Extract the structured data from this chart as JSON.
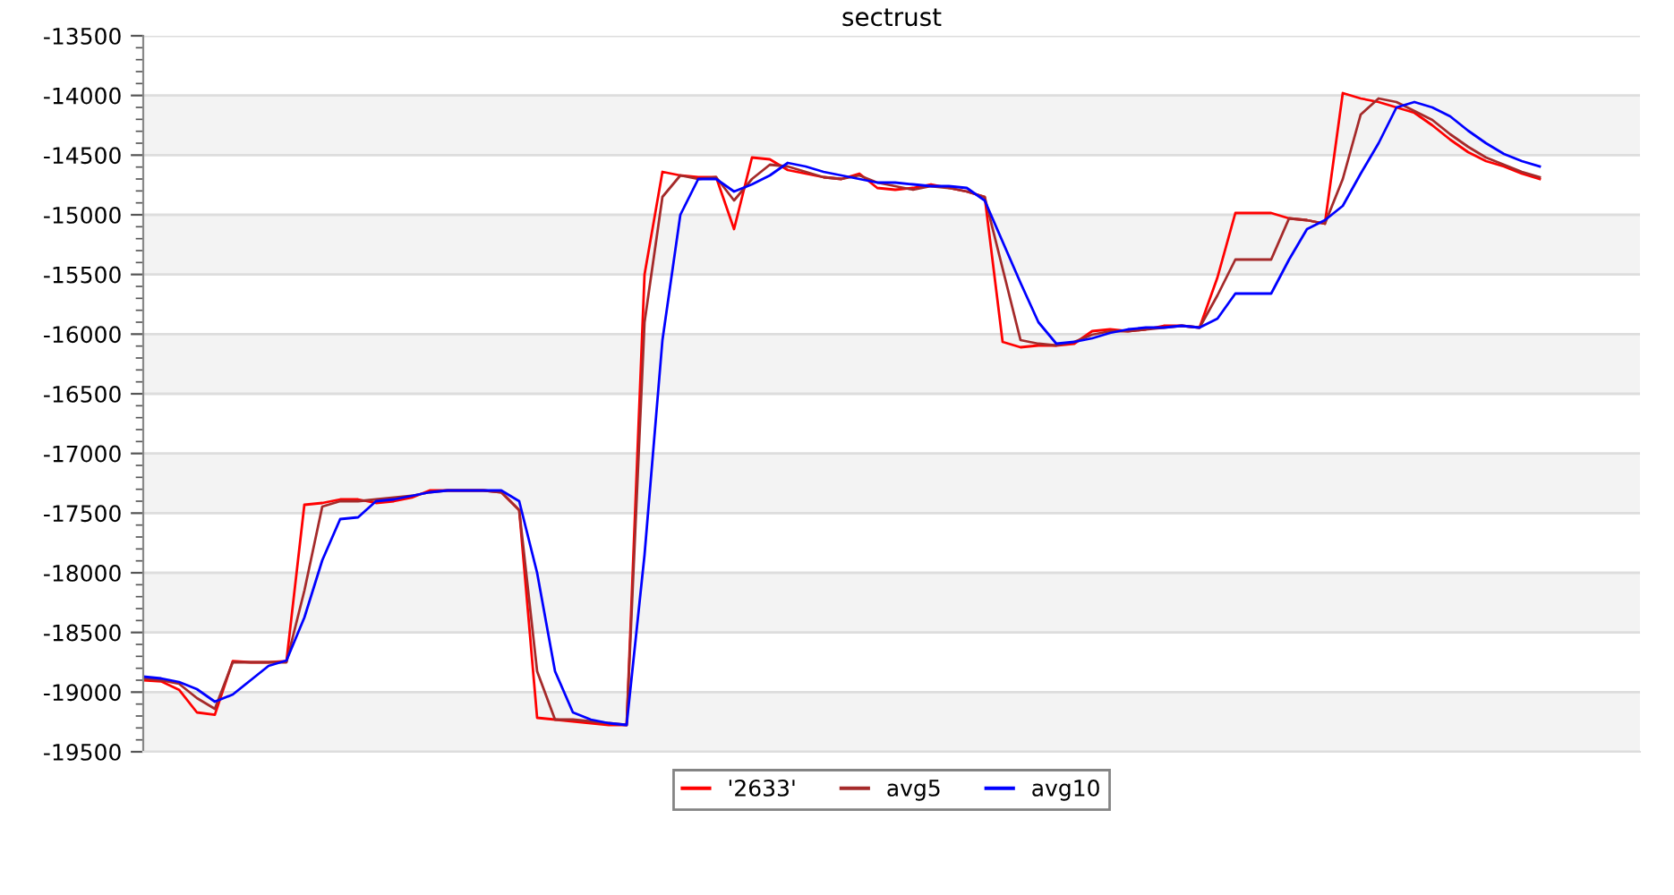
{
  "chart_data": {
    "type": "line",
    "title": "sectrust",
    "categories": [
      null,
      null,
      null,
      null,
      null,
      null,
      null,
      null,
      null,
      null,
      null,
      null,
      null,
      null,
      null,
      null,
      null,
      null,
      null,
      null,
      null,
      null,
      null,
      null,
      null,
      null,
      null,
      null,
      null,
      null,
      null,
      null,
      null,
      null,
      null,
      null,
      null,
      null,
      null,
      null,
      null,
      null,
      null,
      null,
      null,
      null,
      null,
      null,
      null,
      null,
      null,
      null,
      null,
      null,
      null,
      null,
      null,
      null,
      null,
      null,
      null,
      null,
      null,
      null,
      null,
      null,
      null,
      null,
      null,
      null,
      null,
      null,
      null,
      null,
      null,
      null,
      null,
      null,
      null
    ],
    "series": [
      {
        "name": "'2633'",
        "color": "#ff0000",
        "values": [
          -18900,
          -18910,
          -18980,
          -19170,
          -19190,
          -18740,
          -18750,
          -18750,
          -18740,
          -17430,
          -17415,
          -17385,
          -17385,
          -17415,
          -17400,
          -17370,
          -17310,
          -17310,
          -17310,
          -17310,
          -17325,
          -17475,
          -19215,
          -19230,
          -19245,
          -19260,
          -19275,
          -19275,
          -15500,
          -14640,
          -14670,
          -14685,
          -14685,
          -15120,
          -14520,
          -14535,
          -14625,
          -14655,
          -14685,
          -14700,
          -14655,
          -14775,
          -14790,
          -14775,
          -14745,
          -14775,
          -14805,
          -14850,
          -16065,
          -16110,
          -16095,
          -16095,
          -16080,
          -15975,
          -15960,
          -15975,
          -15960,
          -15930,
          -15930,
          -15945,
          -15525,
          -14985,
          -14985,
          -14985,
          -15030,
          -15045,
          -15075,
          -13980,
          -14025,
          -14055,
          -14100,
          -14145,
          -14250,
          -14370,
          -14475,
          -14550,
          -14595,
          -14655,
          -14700
        ]
      },
      {
        "name": "avg5",
        "color": "#a52a2a",
        "values": [
          -18885,
          -18900,
          -18930,
          -19050,
          -19140,
          -18750,
          -18750,
          -18750,
          -18750,
          -18150,
          -17445,
          -17400,
          -17400,
          -17385,
          -17370,
          -17355,
          -17325,
          -17310,
          -17310,
          -17310,
          -17325,
          -17475,
          -18825,
          -19230,
          -19230,
          -19245,
          -19260,
          -19275,
          -15900,
          -14850,
          -14670,
          -14700,
          -14685,
          -14880,
          -14700,
          -14580,
          -14595,
          -14640,
          -14685,
          -14700,
          -14670,
          -14730,
          -14760,
          -14790,
          -14760,
          -14775,
          -14805,
          -14850,
          -15450,
          -16050,
          -16080,
          -16095,
          -16065,
          -16005,
          -15975,
          -15975,
          -15960,
          -15945,
          -15930,
          -15945,
          -15675,
          -15375,
          -15375,
          -15375,
          -15030,
          -15045,
          -15075,
          -14700,
          -14160,
          -14025,
          -14055,
          -14130,
          -14205,
          -14325,
          -14430,
          -14520,
          -14580,
          -14640,
          -14685
        ]
      },
      {
        "name": "avg10",
        "color": "#0000ff",
        "values": [
          -18870,
          -18885,
          -18915,
          -18975,
          -19080,
          -19020,
          -18900,
          -18780,
          -18735,
          -18375,
          -17895,
          -17550,
          -17535,
          -17400,
          -17385,
          -17355,
          -17325,
          -17310,
          -17310,
          -17310,
          -17310,
          -17400,
          -18000,
          -18825,
          -19170,
          -19230,
          -19260,
          -19275,
          -17850,
          -16050,
          -15000,
          -14700,
          -14700,
          -14805,
          -14745,
          -14670,
          -14565,
          -14595,
          -14640,
          -14670,
          -14700,
          -14730,
          -14730,
          -14745,
          -14760,
          -14760,
          -14775,
          -14880,
          -15225,
          -15570,
          -15900,
          -16080,
          -16065,
          -16035,
          -15990,
          -15960,
          -15945,
          -15945,
          -15930,
          -15945,
          -15870,
          -15660,
          -15660,
          -15660,
          -15375,
          -15120,
          -15045,
          -14925,
          -14655,
          -14400,
          -14100,
          -14055,
          -14100,
          -14175,
          -14295,
          -14400,
          -14490,
          -14550,
          -14595
        ]
      }
    ],
    "ylim": [
      -19500,
      -13500
    ],
    "yticks": [
      -19500,
      -19000,
      -18500,
      -18000,
      -17500,
      -17000,
      -16500,
      -16000,
      -15500,
      -15000,
      -14500,
      -14000,
      -13500
    ],
    "bands": [
      {
        "axis": "y",
        "from": -19500,
        "to": -19000,
        "color": "#f3f3f3"
      },
      {
        "axis": "y",
        "from": -18500,
        "to": -18000,
        "color": "#f3f3f3"
      },
      {
        "axis": "y",
        "from": -17500,
        "to": -17000,
        "color": "#f3f3f3"
      },
      {
        "axis": "y",
        "from": -16500,
        "to": -16000,
        "color": "#f3f3f3"
      },
      {
        "axis": "y",
        "from": -15500,
        "to": -15000,
        "color": "#f3f3f3"
      },
      {
        "axis": "y",
        "from": -14500,
        "to": -14000,
        "color": "#f3f3f3"
      }
    ],
    "grid": "y",
    "legend": "bottom",
    "tick_labels": "y",
    "marker": "none",
    "line_style": "solid"
  }
}
